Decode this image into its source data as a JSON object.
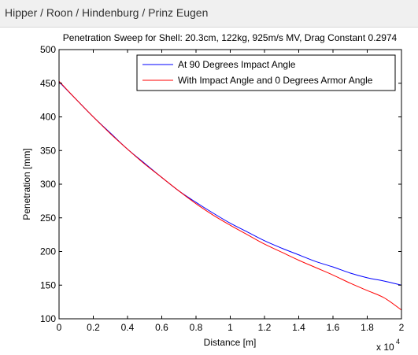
{
  "header": {
    "title": "Hipper / Roon / Hindenburg / Prinz Eugen"
  },
  "chart_data": {
    "type": "line",
    "title": "Penetration Sweep for Shell: 20.3cm, 122kg, 925m/s MV, Drag Constant 0.2974",
    "xlabel": "Distance [m]",
    "ylabel": "Penetration [mm]",
    "x_multiplier_label": "x 10",
    "x_multiplier_exponent": "4",
    "xlim": [
      0,
      20000
    ],
    "ylim": [
      100,
      500
    ],
    "x_tick_labels": [
      "0",
      "0.2",
      "0.4",
      "0.6",
      "0.8",
      "1",
      "1.2",
      "1.4",
      "1.6",
      "1.8",
      "2"
    ],
    "y_tick_labels": [
      "100",
      "150",
      "200",
      "250",
      "300",
      "350",
      "400",
      "450",
      "500"
    ],
    "legend_position": "top-right",
    "grid": false,
    "x": [
      0,
      1000,
      2000,
      3000,
      4000,
      5000,
      6000,
      7000,
      8000,
      9000,
      10000,
      11000,
      12000,
      13000,
      14000,
      15000,
      16000,
      17000,
      18000,
      19000,
      20000
    ],
    "series": [
      {
        "name": "At 90 Degrees Impact Angle",
        "color": "#0000ff",
        "values": [
          452,
          426,
          400,
          376,
          352,
          331,
          310,
          290,
          273,
          257,
          242,
          229,
          216,
          205,
          195,
          185,
          177,
          168,
          161,
          156,
          150
        ]
      },
      {
        "name": "With Impact Angle and 0 Degrees Armor Angle",
        "color": "#ff0000",
        "values": [
          453,
          426,
          400,
          375,
          352,
          330,
          310,
          290,
          271,
          254,
          239,
          225,
          211,
          199,
          187,
          176,
          165,
          153,
          142,
          131,
          113
        ]
      }
    ]
  }
}
